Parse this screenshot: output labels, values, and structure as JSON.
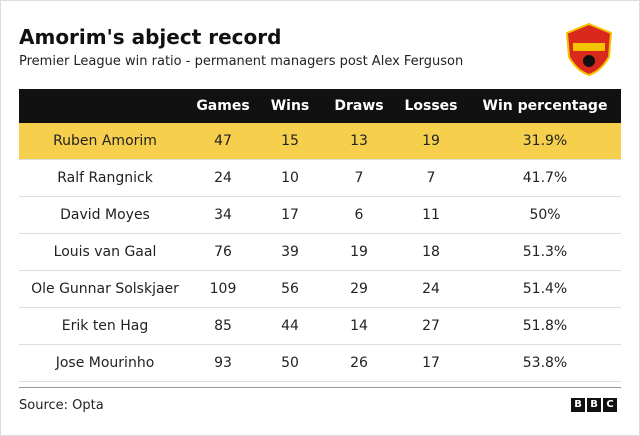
{
  "header": {
    "title": "Amorim's abject record",
    "subtitle": "Premier League win ratio - permanent managers post Alex Ferguson"
  },
  "table": {
    "columns": [
      "Games",
      "Wins",
      "Draws",
      "Losses",
      "Win percentage"
    ],
    "rows": [
      [
        "Ruben Amorim",
        "47",
        "15",
        "13",
        "19",
        "31.9%"
      ],
      [
        "Ralf Rangnick",
        "24",
        "10",
        "7",
        "7",
        "41.7%"
      ],
      [
        "David Moyes",
        "34",
        "17",
        "6",
        "11",
        "50%"
      ],
      [
        "Louis van Gaal",
        "76",
        "39",
        "19",
        "18",
        "51.3%"
      ],
      [
        "Ole Gunnar Solskjaer",
        "109",
        "56",
        "29",
        "24",
        "51.4%"
      ],
      [
        "Erik ten Hag",
        "85",
        "44",
        "14",
        "27",
        "51.8%"
      ],
      [
        "Jose Mourinho",
        "93",
        "50",
        "26",
        "17",
        "53.8%"
      ]
    ]
  },
  "footer": {
    "source": "Source: Opta",
    "brand": [
      "B",
      "B",
      "C"
    ]
  }
}
